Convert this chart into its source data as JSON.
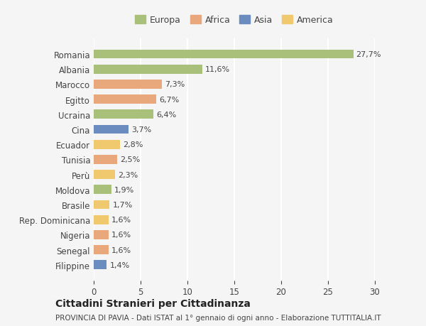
{
  "countries": [
    "Romania",
    "Albania",
    "Marocco",
    "Egitto",
    "Ucraina",
    "Cina",
    "Ecuador",
    "Tunisia",
    "Perù",
    "Moldova",
    "Brasile",
    "Rep. Dominicana",
    "Nigeria",
    "Senegal",
    "Filippine"
  ],
  "values": [
    27.7,
    11.6,
    7.3,
    6.7,
    6.4,
    3.7,
    2.8,
    2.5,
    2.3,
    1.9,
    1.7,
    1.6,
    1.6,
    1.6,
    1.4
  ],
  "labels": [
    "27,7%",
    "11,6%",
    "7,3%",
    "6,7%",
    "6,4%",
    "3,7%",
    "2,8%",
    "2,5%",
    "2,3%",
    "1,9%",
    "1,7%",
    "1,6%",
    "1,6%",
    "1,6%",
    "1,4%"
  ],
  "colors": [
    "#a8c07a",
    "#a8c07a",
    "#e8a87c",
    "#e8a87c",
    "#a8c07a",
    "#6b8cbf",
    "#f0c96e",
    "#e8a87c",
    "#f0c96e",
    "#a8c07a",
    "#f0c96e",
    "#f0c96e",
    "#e8a87c",
    "#e8a87c",
    "#6b8cbf"
  ],
  "legend": {
    "Europa": "#a8c07a",
    "Africa": "#e8a87c",
    "Asia": "#6b8cbf",
    "America": "#f0c96e"
  },
  "title": "Cittadini Stranieri per Cittadinanza",
  "subtitle": "PROVINCIA DI PAVIA - Dati ISTAT al 1° gennaio di ogni anno - Elaborazione TUTTITALIA.IT",
  "xlim": [
    0,
    30
  ],
  "xticks": [
    0,
    5,
    10,
    15,
    20,
    25,
    30
  ],
  "bg_color": "#f5f5f5",
  "grid_color": "#ffffff",
  "bar_height": 0.6
}
